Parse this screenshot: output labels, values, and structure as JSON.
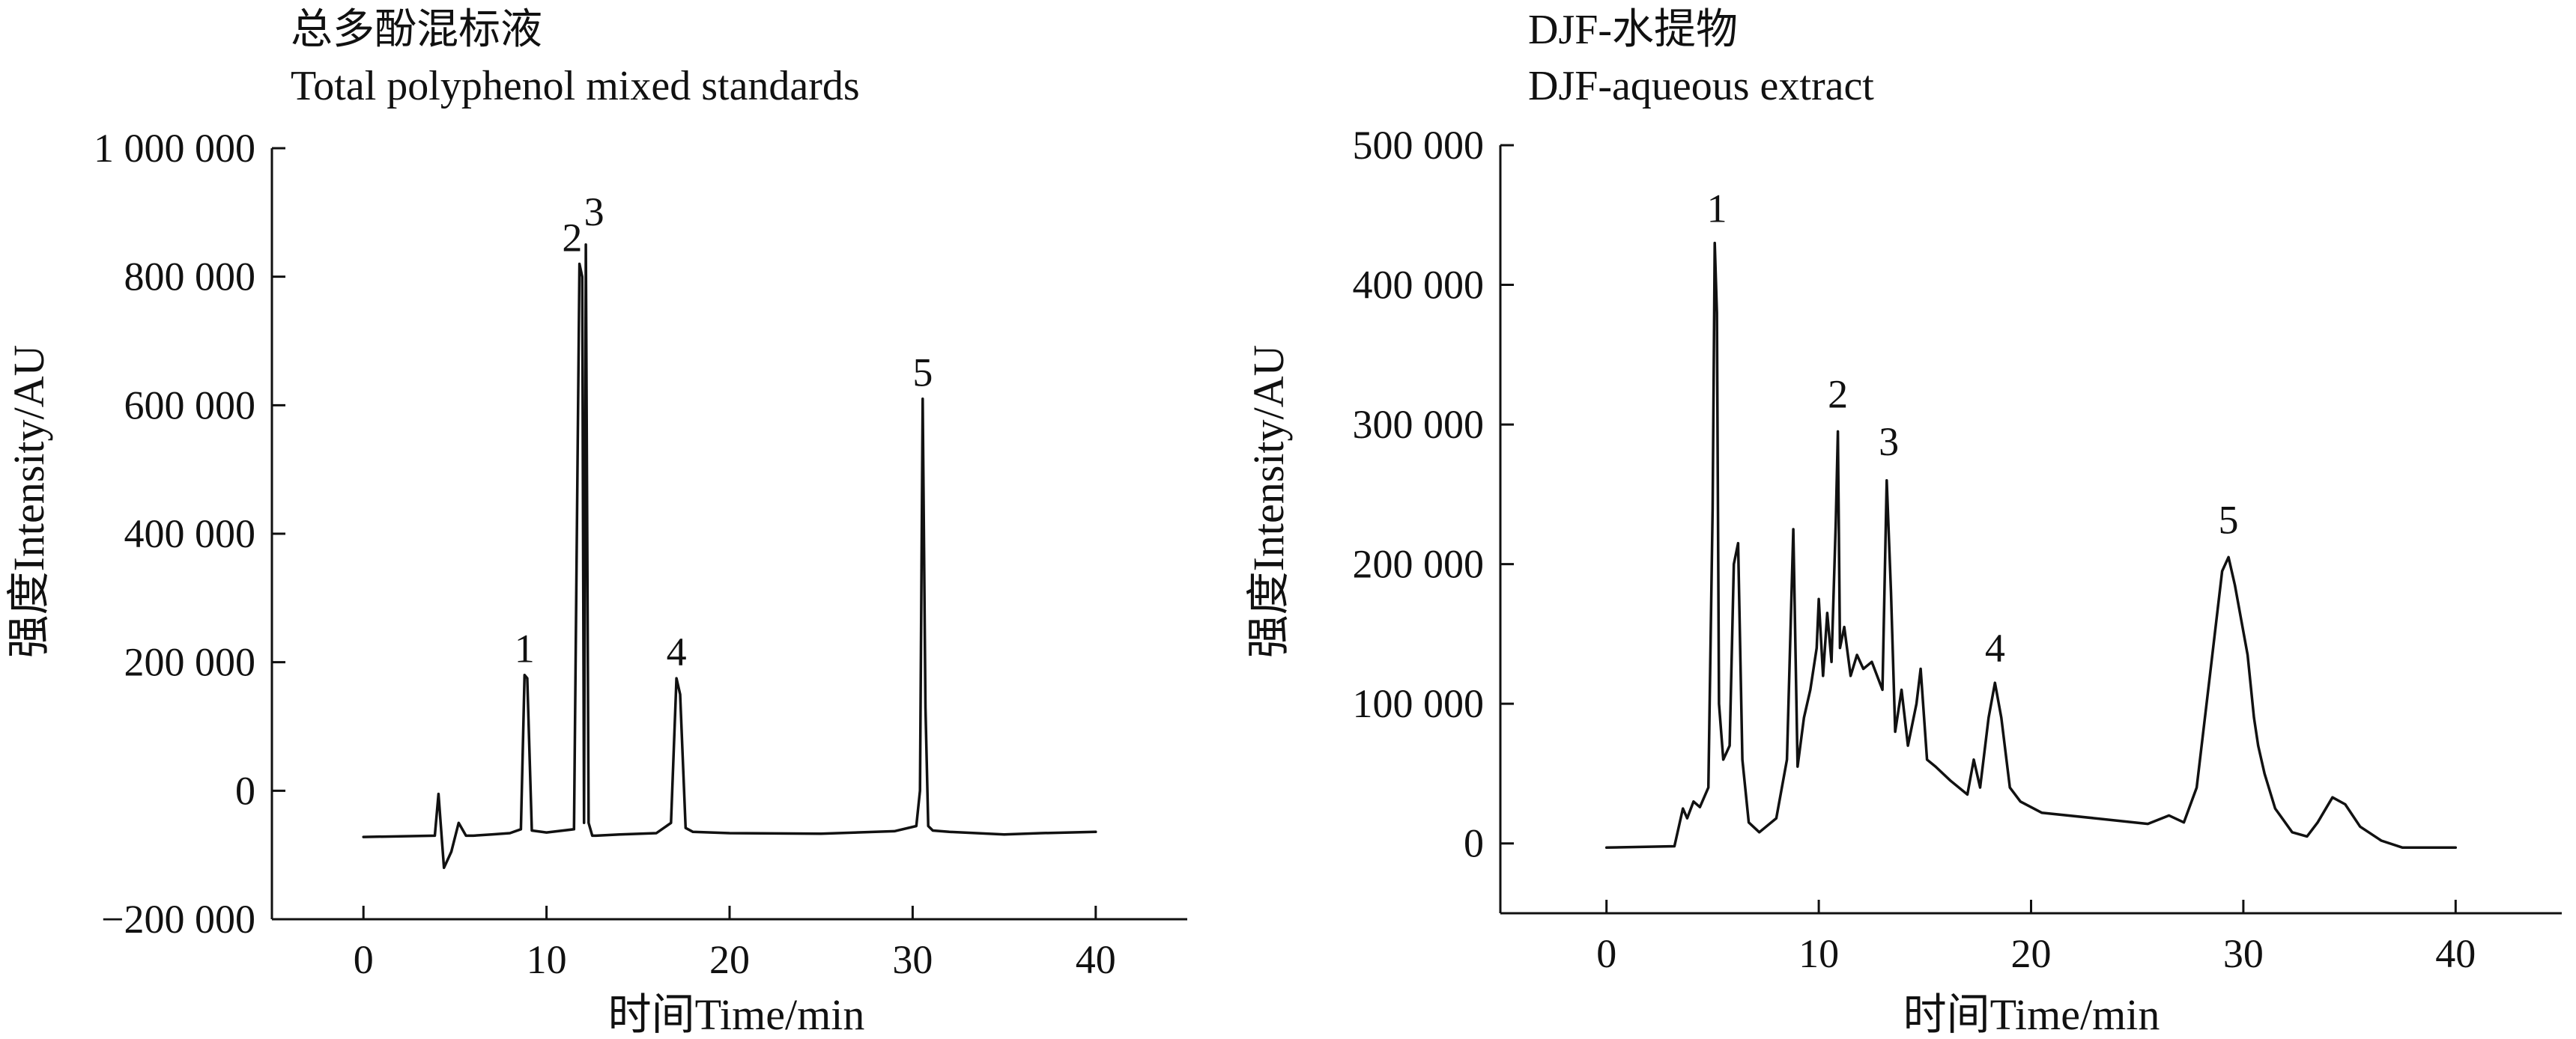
{
  "chart_data": [
    {
      "type": "line",
      "title": "总多酚混标液",
      "subtitle": "Total polyphenol mixed standards",
      "xlabel": "时间Time/min",
      "ylabel": "强度Intensity/AU",
      "xlim": [
        -5,
        45
      ],
      "ylim": [
        -200000,
        1000000
      ],
      "x_ticks": [
        0,
        10,
        20,
        30,
        40
      ],
      "x_tick_labels": [
        "0",
        "10",
        "20",
        "30",
        "40"
      ],
      "y_ticks": [
        -200000,
        0,
        200000,
        400000,
        600000,
        800000,
        1000000
      ],
      "y_tick_labels": [
        "−200 000",
        "0",
        "200 000",
        "400 000",
        "600 000",
        "800 000",
        "1 000 000"
      ],
      "grid": false,
      "series": [
        {
          "x": [
            0,
            3.9,
            4.1,
            4.4,
            4.8,
            5.2,
            5.6,
            6,
            7,
            8,
            8.6,
            8.8,
            8.95,
            9.2,
            10,
            11.5,
            11.8,
            11.95,
            12.05,
            12.15,
            12.3,
            12.5,
            12.7,
            14,
            16,
            16.8,
            17.1,
            17.3,
            17.6,
            18,
            20,
            25,
            29,
            30.2,
            30.4,
            30.55,
            30.7,
            30.85,
            31.1,
            32,
            35,
            37,
            40
          ],
          "y": [
            -72000,
            -70000,
            -5000,
            -120000,
            -95000,
            -50000,
            -70000,
            -70000,
            -68000,
            -66000,
            -60000,
            180000,
            175000,
            -62000,
            -65000,
            -60000,
            820000,
            800000,
            -50000,
            850000,
            -50000,
            -70000,
            -70000,
            -68000,
            -66000,
            -50000,
            175000,
            150000,
            -58000,
            -64000,
            -66000,
            -67000,
            -63000,
            -55000,
            0,
            610000,
            130000,
            -55000,
            -62000,
            -64000,
            -68000,
            -66000,
            -64000
          ]
        }
      ],
      "annotations": [
        {
          "text": "1",
          "x": 8.8,
          "y": 200000
        },
        {
          "text": "2",
          "x": 11.4,
          "y": 840000
        },
        {
          "text": "3",
          "x": 12.6,
          "y": 880000
        },
        {
          "text": "4",
          "x": 17.1,
          "y": 195000
        },
        {
          "text": "5",
          "x": 30.55,
          "y": 630000
        }
      ]
    },
    {
      "type": "line",
      "title": "DJF-水提物",
      "subtitle": "DJF-aqueous extract",
      "xlabel": "时间Time/min",
      "ylabel": "强度Intensity/AU",
      "xlim": [
        -5,
        45
      ],
      "ylim": [
        -50000,
        500000
      ],
      "x_ticks": [
        0,
        10,
        20,
        30,
        40
      ],
      "x_tick_labels": [
        "0",
        "10",
        "20",
        "30",
        "40"
      ],
      "y_ticks": [
        0,
        100000,
        200000,
        300000,
        400000,
        500000
      ],
      "y_tick_labels": [
        "0",
        "100 000",
        "200 000",
        "300 000",
        "400 000",
        "500 000"
      ],
      "grid": false,
      "series": [
        {
          "x": [
            0,
            3.2,
            3.6,
            3.8,
            4.1,
            4.4,
            4.8,
            5.0,
            5.1,
            5.2,
            5.3,
            5.5,
            5.8,
            6.0,
            6.2,
            6.4,
            6.7,
            7.2,
            8.0,
            8.5,
            8.8,
            9.0,
            9.3,
            9.6,
            9.9,
            10.0,
            10.2,
            10.4,
            10.6,
            10.8,
            10.9,
            11.0,
            11.2,
            11.5,
            11.8,
            12.1,
            12.5,
            13.0,
            13.2,
            13.4,
            13.6,
            13.9,
            14.2,
            14.6,
            14.8,
            15.1,
            15.5,
            16.2,
            17.0,
            17.3,
            17.6,
            18.0,
            18.3,
            18.6,
            19.0,
            19.5,
            20.5,
            23,
            25.5,
            26.5,
            27.2,
            27.8,
            28.5,
            29.0,
            29.3,
            29.6,
            29.9,
            30.2,
            30.5,
            30.7,
            31.0,
            31.5,
            32.3,
            33.0,
            33.5,
            34.2,
            34.8,
            35.5,
            36.5,
            37.5,
            40
          ],
          "y": [
            -3000,
            -2000,
            25000,
            18000,
            30000,
            26000,
            40000,
            240000,
            430000,
            380000,
            100000,
            60000,
            70000,
            200000,
            215000,
            60000,
            15000,
            8000,
            18000,
            60000,
            225000,
            55000,
            90000,
            110000,
            140000,
            175000,
            120000,
            165000,
            130000,
            230000,
            295000,
            140000,
            155000,
            120000,
            135000,
            125000,
            130000,
            110000,
            260000,
            180000,
            80000,
            110000,
            70000,
            100000,
            125000,
            60000,
            55000,
            45000,
            35000,
            60000,
            40000,
            90000,
            115000,
            90000,
            40000,
            30000,
            22000,
            18000,
            14000,
            20000,
            15000,
            40000,
            130000,
            195000,
            205000,
            185000,
            160000,
            135000,
            90000,
            70000,
            50000,
            25000,
            8000,
            5000,
            15000,
            33000,
            28000,
            12000,
            2000,
            -3000,
            -3000
          ]
        }
      ],
      "annotations": [
        {
          "text": "1",
          "x": 5.2,
          "y": 445000
        },
        {
          "text": "2",
          "x": 10.9,
          "y": 312000
        },
        {
          "text": "3",
          "x": 13.3,
          "y": 278000
        },
        {
          "text": "4",
          "x": 18.3,
          "y": 130000
        },
        {
          "text": "5",
          "x": 29.3,
          "y": 222000
        }
      ]
    }
  ]
}
